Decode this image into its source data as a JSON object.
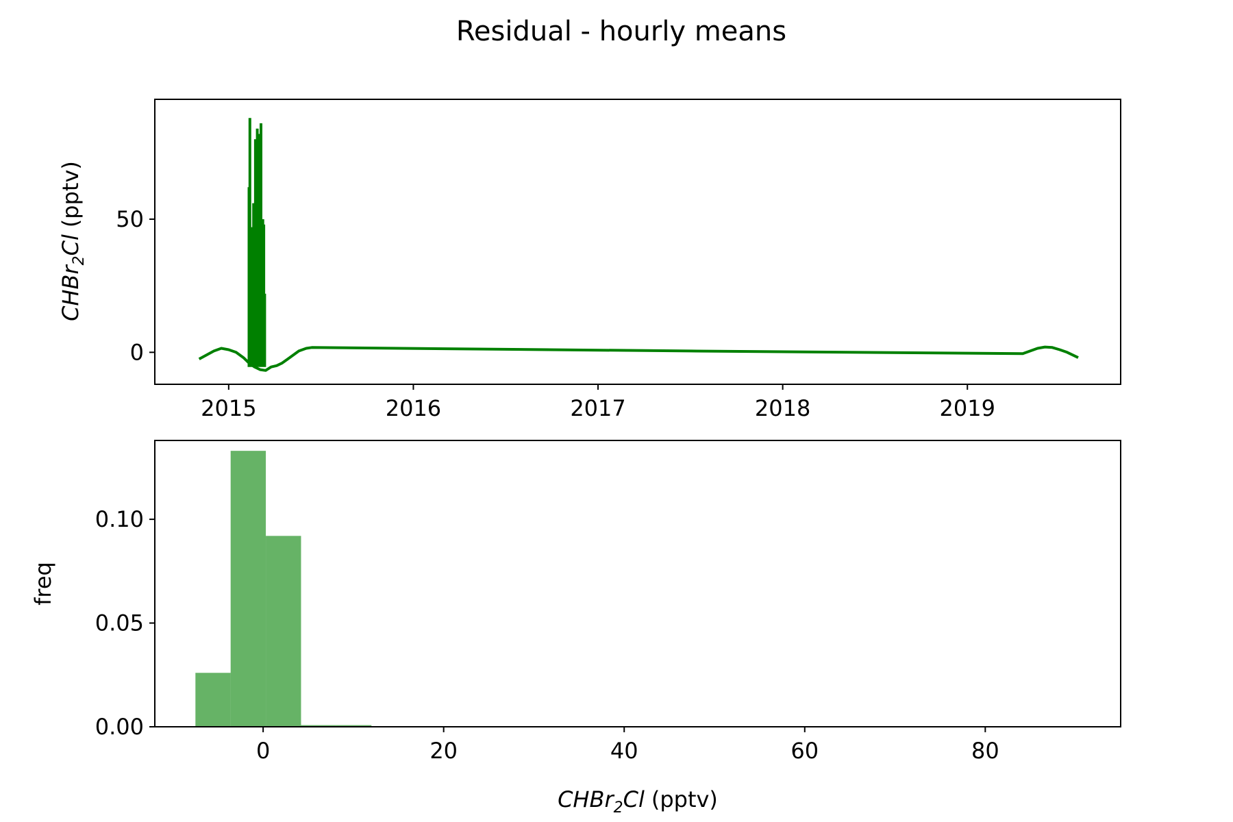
{
  "figure": {
    "title": "Residual - hourly means"
  },
  "colors": {
    "line": "#008000",
    "hist": "#008000",
    "axes": "#000000"
  },
  "chart_data": [
    {
      "type": "line",
      "panel": "top",
      "xlabel": "",
      "ylabel_main": "CHBr",
      "ylabel_sub": "2",
      "ylabel_tail": "Cl",
      "ylabel_unit": "(pptv)",
      "xlim": [
        2014.6,
        2019.83
      ],
      "ylim": [
        -12,
        95
      ],
      "x_ticks": [
        2015,
        2016,
        2017,
        2018,
        2019
      ],
      "x_tick_labels": [
        "2015",
        "2016",
        "2017",
        "2018",
        "2019"
      ],
      "y_ticks": [
        0,
        50
      ],
      "y_tick_labels": [
        "0",
        "50"
      ],
      "grid": false,
      "series_smooth": {
        "x": [
          2014.84,
          2014.88,
          2014.92,
          2014.96,
          2015.0,
          2015.04,
          2015.08,
          2015.11,
          2015.14,
          2015.17,
          2015.2,
          2015.23,
          2015.26,
          2015.29,
          2015.32,
          2015.35,
          2015.38,
          2015.42,
          2015.45,
          2017.5,
          2019.3,
          2019.34,
          2019.38,
          2019.42,
          2019.46,
          2019.5,
          2019.54,
          2019.57,
          2019.6
        ],
        "y": [
          -2.5,
          -1.0,
          0.5,
          1.5,
          1.0,
          0.0,
          -2.0,
          -4.0,
          -5.5,
          -6.5,
          -6.8,
          -5.5,
          -5.0,
          -4.0,
          -2.5,
          -1.0,
          0.5,
          1.5,
          1.8,
          0.5,
          -0.5,
          0.5,
          1.5,
          2.0,
          1.8,
          1.0,
          0.0,
          -1.0,
          -2.0
        ]
      },
      "series_spikes": {
        "x": [
          2015.11,
          2015.115,
          2015.12,
          2015.125,
          2015.13,
          2015.135,
          2015.14,
          2015.145,
          2015.15,
          2015.155,
          2015.16,
          2015.165,
          2015.17,
          2015.175,
          2015.18,
          2015.185,
          2015.19,
          2015.195
        ],
        "y": [
          62,
          88,
          35,
          47,
          20,
          56,
          40,
          80,
          60,
          84,
          35,
          82,
          70,
          86,
          45,
          50,
          48,
          22
        ]
      }
    },
    {
      "type": "bar",
      "panel": "bottom",
      "xlabel_main": "CHBr",
      "xlabel_sub": "2",
      "xlabel_tail": "Cl",
      "xlabel_unit": "(pptv)",
      "ylabel": "freq",
      "xlim": [
        -12,
        95
      ],
      "ylim": [
        0,
        0.138
      ],
      "x_ticks": [
        0,
        20,
        40,
        60,
        80
      ],
      "x_tick_labels": [
        "0",
        "20",
        "40",
        "60",
        "80"
      ],
      "y_ticks": [
        0.0,
        0.05,
        0.1
      ],
      "y_tick_labels": [
        "0.00",
        "0.05",
        "0.10"
      ],
      "grid": false,
      "alpha": 0.6,
      "bins": [
        {
          "x0": -7.5,
          "x1": -3.6,
          "value": 0.026
        },
        {
          "x0": -3.6,
          "x1": 0.3,
          "value": 0.133
        },
        {
          "x0": 0.3,
          "x1": 4.2,
          "value": 0.092
        },
        {
          "x0": 4.2,
          "x1": 8.1,
          "value": 0.0008
        },
        {
          "x0": 8.1,
          "x1": 12.0,
          "value": 0.0008
        },
        {
          "x0": 12.0,
          "x1": 15.9,
          "value": 0.0003
        },
        {
          "x0": 35.4,
          "x1": 39.3,
          "value": 0.0003
        }
      ]
    }
  ]
}
